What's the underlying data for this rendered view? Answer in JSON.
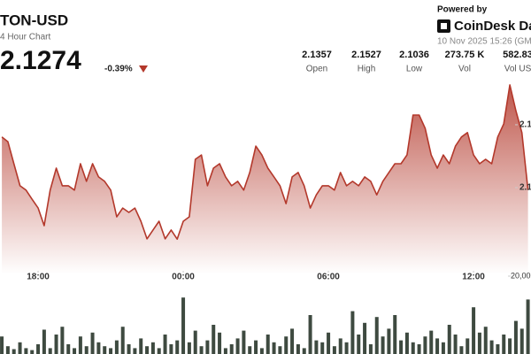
{
  "chart_data": {
    "type": "line",
    "title": "TON-USD",
    "subtitle": "4 Hour Chart",
    "price": 2.1274,
    "change": "-0.39%",
    "powered_by": "Powered by",
    "brand": "CoinDesk Dat",
    "timestamp": "10 Nov 2025 15:26 (GM",
    "stats": [
      {
        "value": 2.1357,
        "label": "Open"
      },
      {
        "value": 2.1527,
        "label": "High"
      },
      {
        "value": 2.1036,
        "label": "Low"
      },
      {
        "value": "273.75 K",
        "label": "Vol"
      },
      {
        "value": 582.83,
        "label": "Vol US"
      }
    ],
    "xlim": [
      -0.3,
      87.5
    ],
    "xticks": [
      {
        "value": 6,
        "label": "18:00"
      },
      {
        "value": 30,
        "label": "00:00"
      },
      {
        "value": 54,
        "label": "06:00"
      },
      {
        "value": 78,
        "label": "12:00"
      }
    ],
    "ylim": [
      2.0924,
      2.1628
    ],
    "yticks": [
      {
        "value": 2.14,
        "label": "2.1"
      },
      {
        "value": 2.12,
        "label": "2.1"
      }
    ],
    "y2lim": [
      0,
      25000
    ],
    "y2ticks": [
      {
        "value": 20000,
        "label": "20,00"
      }
    ],
    "series": [
      {
        "color": "#b3382b",
        "values": [
          2.1361,
          2.1346,
          2.1276,
          2.1206,
          2.1192,
          2.1163,
          2.1135,
          2.1079,
          2.1192,
          2.1262,
          2.1206,
          2.1206,
          2.1192,
          2.1276,
          2.122,
          2.1276,
          2.1234,
          2.122,
          2.1192,
          2.1107,
          2.1135,
          2.1121,
          2.1135,
          2.1093,
          2.1037,
          2.1065,
          2.1093,
          2.1037,
          2.1065,
          2.1036,
          2.1093,
          2.1107,
          2.129,
          2.1304,
          2.1206,
          2.1262,
          2.1276,
          2.1234,
          2.1206,
          2.122,
          2.1192,
          2.1248,
          2.1332,
          2.1304,
          2.1262,
          2.1234,
          2.1206,
          2.1149,
          2.1234,
          2.1248,
          2.1206,
          2.1135,
          2.1177,
          2.1206,
          2.1206,
          2.1192,
          2.1248,
          2.1206,
          2.122,
          2.1206,
          2.1234,
          2.122,
          2.1177,
          2.122,
          2.1248,
          2.1276,
          2.1276,
          2.1304,
          2.1431,
          2.1431,
          2.1389,
          2.1304,
          2.1262,
          2.1304,
          2.1276,
          2.1332,
          2.1361,
          2.1375,
          2.1304,
          2.1276,
          2.129,
          2.1276,
          2.1361,
          2.1403,
          2.1527,
          2.1445,
          2.1375,
          2.1192
        ]
      },
      {
        "type": "bar",
        "axis": "y2",
        "color": "#3e4a40",
        "values": [
          4500,
          2000,
          1250,
          3000,
          1500,
          1000,
          2500,
          6250,
          1500,
          5000,
          7000,
          2500,
          1500,
          4500,
          2000,
          5500,
          3000,
          2000,
          1500,
          3500,
          7000,
          2500,
          1500,
          4000,
          2000,
          3000,
          1500,
          5000,
          2500,
          3500,
          14500,
          3000,
          6000,
          2000,
          3500,
          7500,
          5500,
          1500,
          2500,
          4000,
          6000,
          2000,
          3500,
          1500,
          5000,
          3000,
          2000,
          4500,
          6500,
          2500,
          1500,
          10000,
          3500,
          3000,
          5500,
          2000,
          4000,
          3000,
          11000,
          5000,
          8000,
          2500,
          9500,
          4500,
          6500,
          10000,
          3500,
          5500,
          3000,
          2500,
          4500,
          6000,
          4000,
          3000,
          7500,
          5000,
          2000,
          4000,
          12000,
          5500,
          7000,
          3500,
          2500,
          5000,
          4000,
          8500,
          6500,
          14000
        ]
      }
    ]
  }
}
